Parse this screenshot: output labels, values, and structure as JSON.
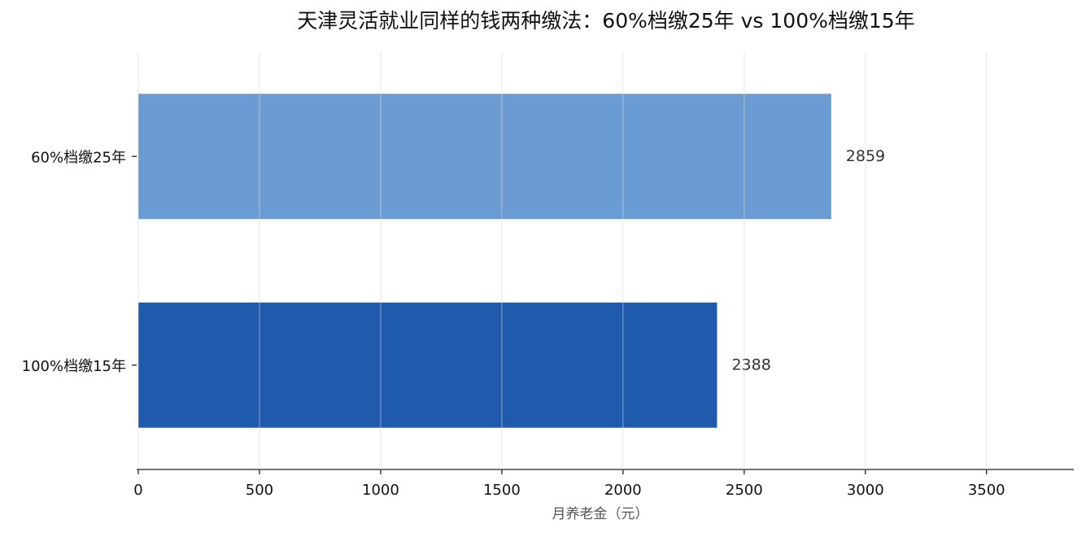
{
  "chart_data": {
    "type": "barh",
    "title": "天津灵活就业同样的钱两种缴法：60%档缴25年 vs 100%档缴15年",
    "x_label": "月养老金（元）",
    "categories": [
      "60%档缴25年",
      "100%档缴15年"
    ],
    "values": [
      2859,
      2388
    ],
    "colors": [
      "#6b9bd3",
      "#1f5aad"
    ],
    "xlim": [
      0,
      3860
    ],
    "xticks": [
      0,
      500,
      1000,
      1500,
      2000,
      2500,
      3000,
      3500
    ],
    "grid": true
  }
}
